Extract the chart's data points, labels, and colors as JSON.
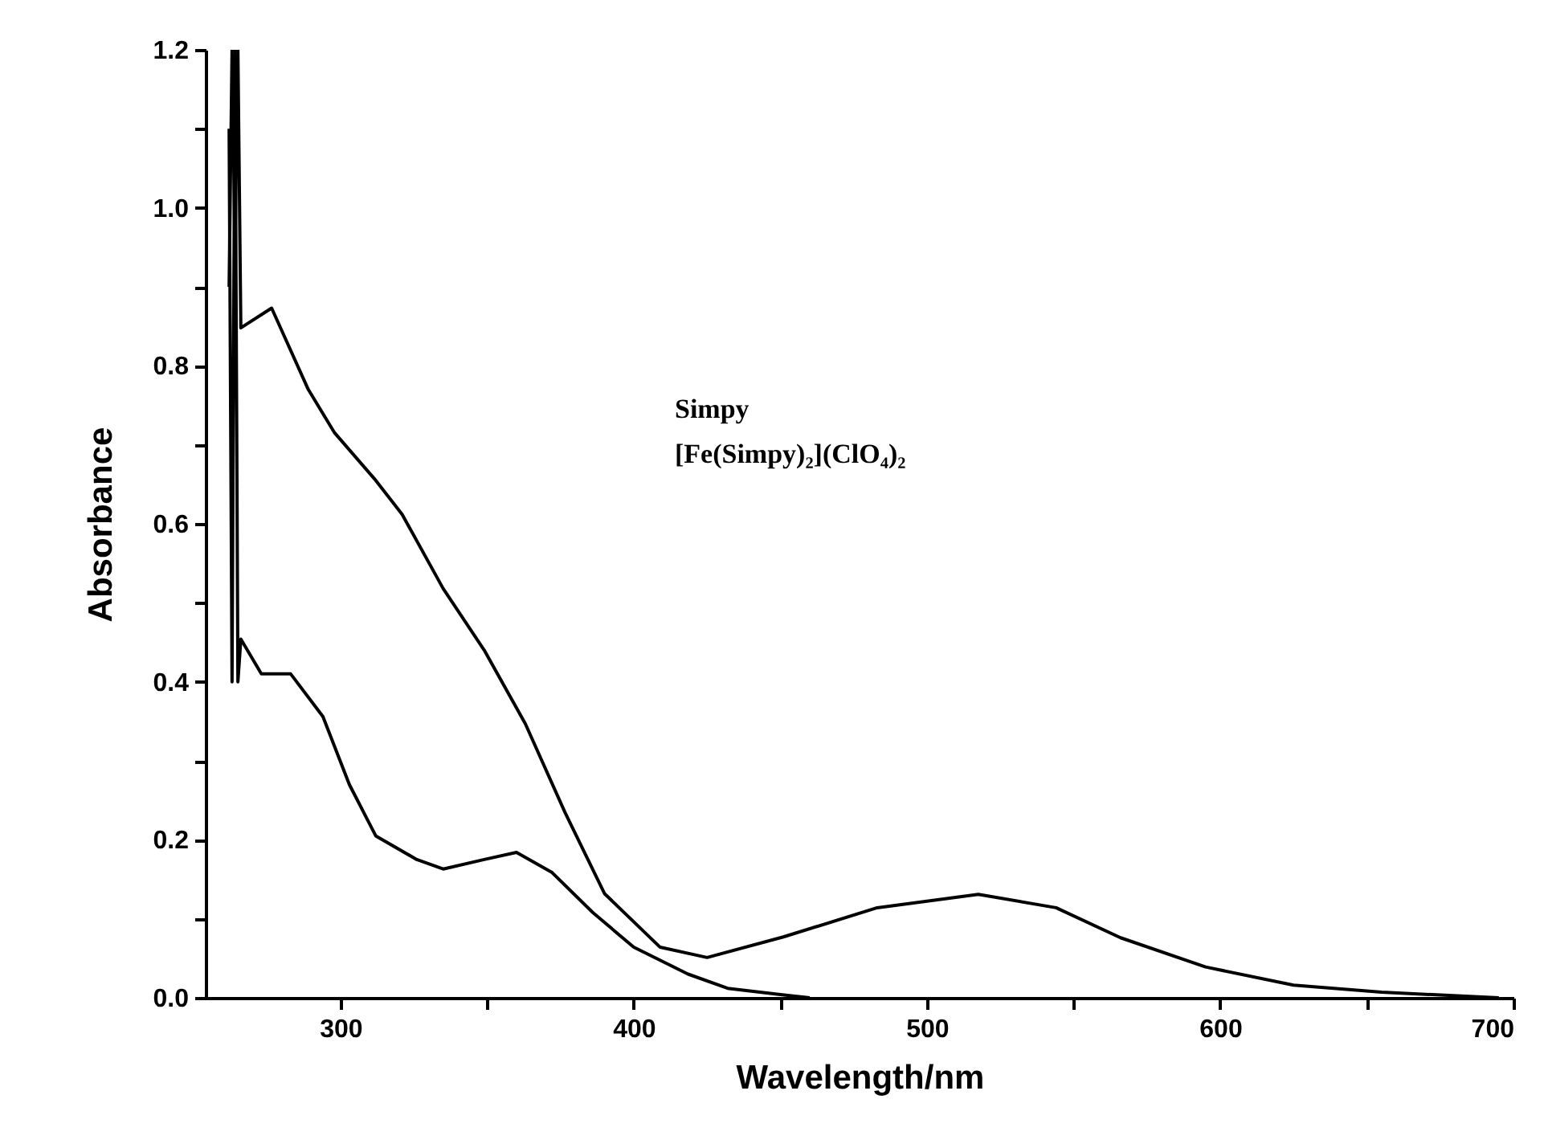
{
  "chart_data": {
    "type": "line",
    "xlabel": "Wavelength/nm",
    "ylabel": "Absorbance",
    "xlim": [
      254,
      700
    ],
    "ylim": [
      0,
      1.2
    ],
    "xticks": [
      300,
      {
        "value": 350,
        "label": null
      },
      400,
      {
        "value": 450,
        "label": null
      },
      500,
      {
        "value": 550,
        "label": null
      },
      600,
      {
        "value": 650,
        "label": null
      },
      700
    ],
    "yticks": [
      {
        "value": 0,
        "label": "0.0"
      },
      {
        "value": 0.1,
        "label": null
      },
      0.2,
      {
        "value": 0.3,
        "label": null
      },
      0.4,
      {
        "value": 0.5,
        "label": null
      },
      0.6,
      {
        "value": 0.7,
        "label": null
      },
      0.8,
      {
        "value": 0.9,
        "label": null
      },
      {
        "value": 1,
        "label": "1.0"
      },
      {
        "value": 1.1,
        "label": null
      },
      1.2
    ],
    "annotations": [
      "Simpy",
      "[Fe(Simpy)₂](ClO₄)₂"
    ],
    "grid": false,
    "legend": false,
    "series": [
      {
        "color": "#000000",
        "x": [
          262,
          263,
          264,
          265,
          266,
          276.5,
          289,
          298,
          312,
          321,
          335,
          349,
          363,
          376.5,
          390,
          409,
          425,
          451,
          483,
          517.5,
          544,
          566,
          595,
          625,
          655,
          695
        ],
        "values": [
          0.9,
          1.2,
          0.95,
          1.2,
          0.848,
          0.873,
          0.77,
          0.715,
          0.655,
          0.612,
          0.518,
          0.44,
          0.347,
          0.235,
          0.132,
          0.064,
          0.051,
          0.077,
          0.114,
          0.131,
          0.114,
          0.076,
          0.039,
          0.016,
          0.007,
          0
        ]
      },
      {
        "color": "#000000",
        "x": [
          262,
          263,
          264,
          265,
          266,
          273,
          283,
          294,
          303,
          312,
          326,
          335,
          349,
          360,
          372,
          386,
          400,
          418.5,
          432,
          450,
          460
        ],
        "values": [
          1.1,
          0.4,
          1.2,
          0.4,
          0.454,
          0.41,
          0.41,
          0.356,
          0.27,
          0.205,
          0.175,
          0.163,
          0.175,
          0.184,
          0.159,
          0.108,
          0.064,
          0.03,
          0.012,
          0.004,
          0
        ]
      }
    ]
  }
}
